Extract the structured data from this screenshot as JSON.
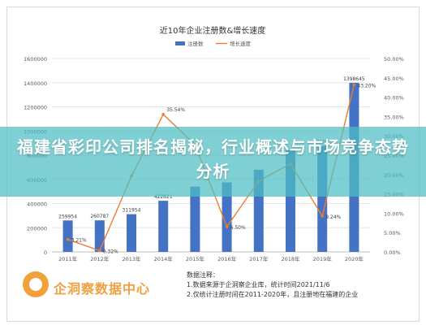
{
  "chart_data": {
    "type": "bar",
    "title": "近10年企业注册数&增长速度",
    "categories": [
      "2011年",
      "2012年",
      "2013年",
      "2014年",
      "2015年",
      "2016年",
      "2017年",
      "2018年",
      "2019年",
      "2020年"
    ],
    "series": [
      {
        "name": "注册数",
        "type": "bar",
        "color": "#4472c4",
        "values": [
          259954,
          260787,
          311954,
          422821,
          540000,
          575000,
          680000,
          840000,
          876052,
          1398645
        ],
        "labels": [
          "259954",
          "260787",
          "311954",
          "422821",
          "",
          "",
          "",
          "",
          "876052",
          "1398645"
        ]
      },
      {
        "name": "增长速度",
        "type": "line",
        "color": "#ed7d31",
        "values": [
          3.21,
          0.32,
          19.6,
          35.54,
          27.7,
          6.5,
          18.3,
          22.8,
          9.24,
          43.2
        ],
        "labels": [
          "3.21%",
          "0.32%",
          "",
          "35.54%",
          "",
          "6.50%",
          "",
          "",
          "9.24%",
          "43.20%"
        ]
      }
    ],
    "ylim": [
      0,
      1600000
    ],
    "y2lim": [
      0,
      50
    ],
    "yticks": [
      "0",
      "200000",
      "400000",
      "600000",
      "800000",
      "1000000",
      "1200000",
      "1400000",
      "1600000"
    ],
    "y2ticks": [
      "0.00%",
      "5.00%",
      "10.00%",
      "15.00%",
      "20.00%",
      "25.00%",
      "30.00%",
      "35.00%",
      "40.00%",
      "45.00%",
      "50.00%"
    ],
    "legend": "top-center",
    "grid": true
  },
  "banner": {
    "title": "福建省彩印公司排名揭秘，行业概述与市场竞争态势分析"
  },
  "footer": {
    "brand": "企洞察数据中心",
    "notes_title": "数据注释：",
    "note1": "1.数据来源于企洞察企业库，统计时间2021/11/6",
    "note2": "2.仅统计注册时间在2011-2020年，且注册地在福建的企业"
  }
}
